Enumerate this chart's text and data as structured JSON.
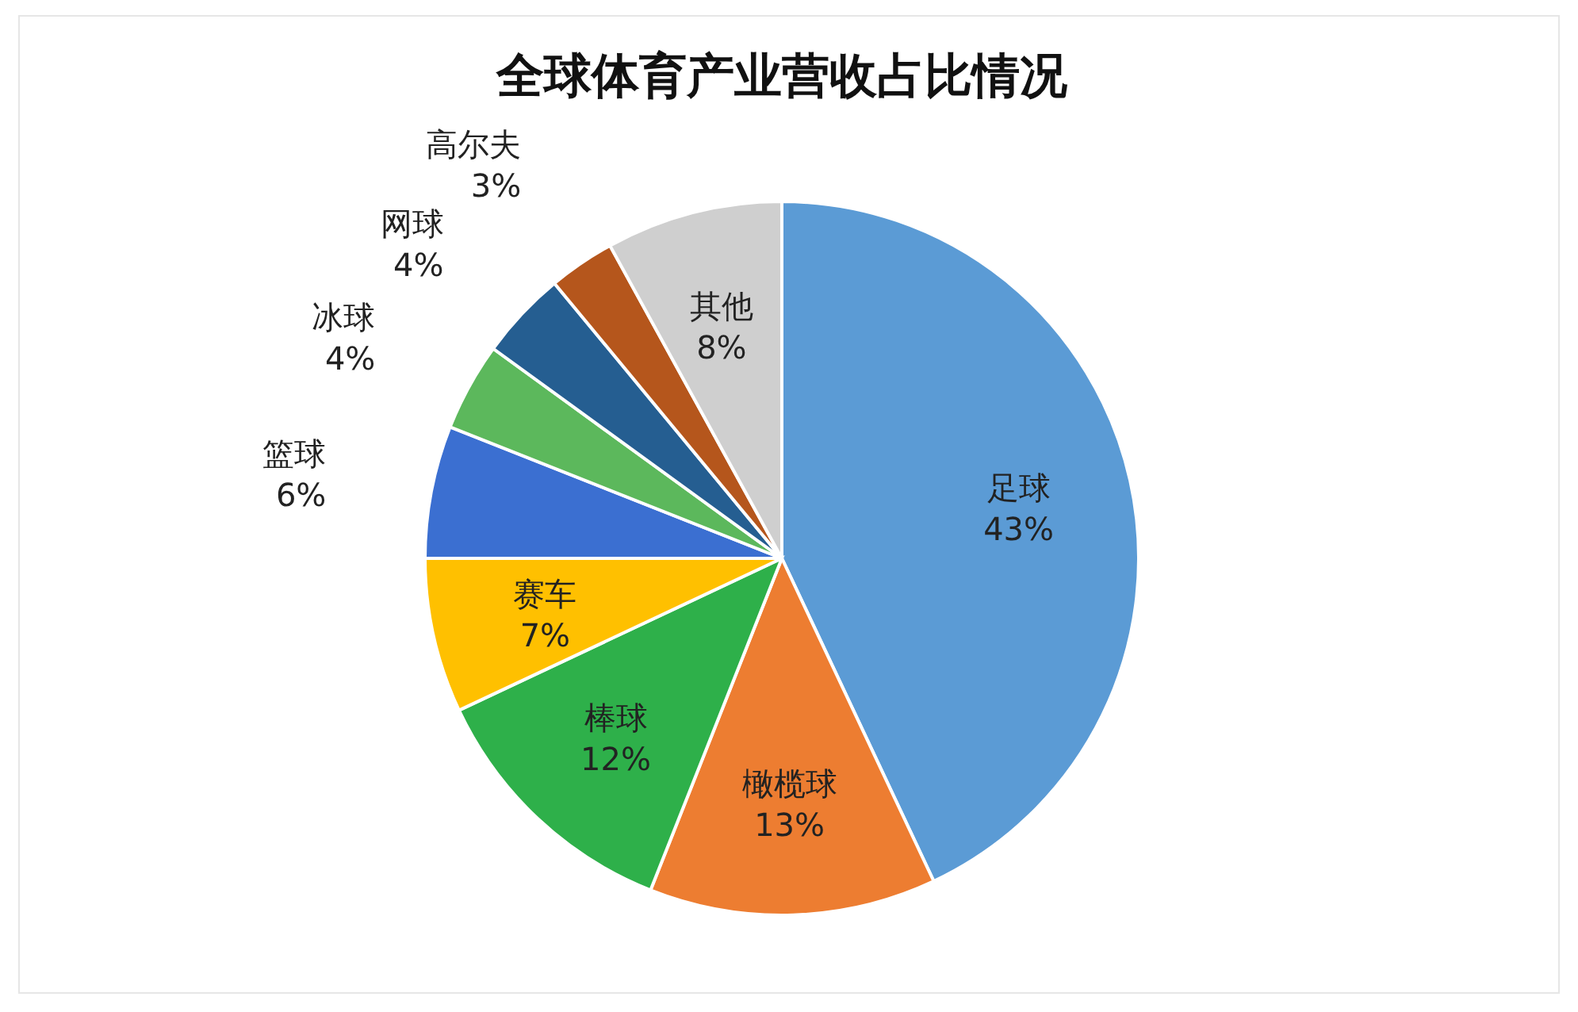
{
  "chart_data": {
    "type": "pie",
    "title": "全球体育产业营收占比情况",
    "categories": [
      "足球",
      "橄榄球",
      "棒球",
      "赛车",
      "篮球",
      "冰球",
      "网球",
      "高尔夫",
      "其他"
    ],
    "values": [
      43,
      13,
      12,
      7,
      6,
      4,
      4,
      3,
      8
    ],
    "colors": [
      "#5b9bd5",
      "#ed7d31",
      "#2eb04a",
      "#ffc000",
      "#3b6fd1",
      "#5cb85c",
      "#255e91",
      "#b5561c",
      "#cfcfcf"
    ],
    "value_labels": [
      "43%",
      "13%",
      "12%",
      "7%",
      "6%",
      "4%",
      "4%",
      "3%",
      "8%"
    ],
    "legend": false
  }
}
